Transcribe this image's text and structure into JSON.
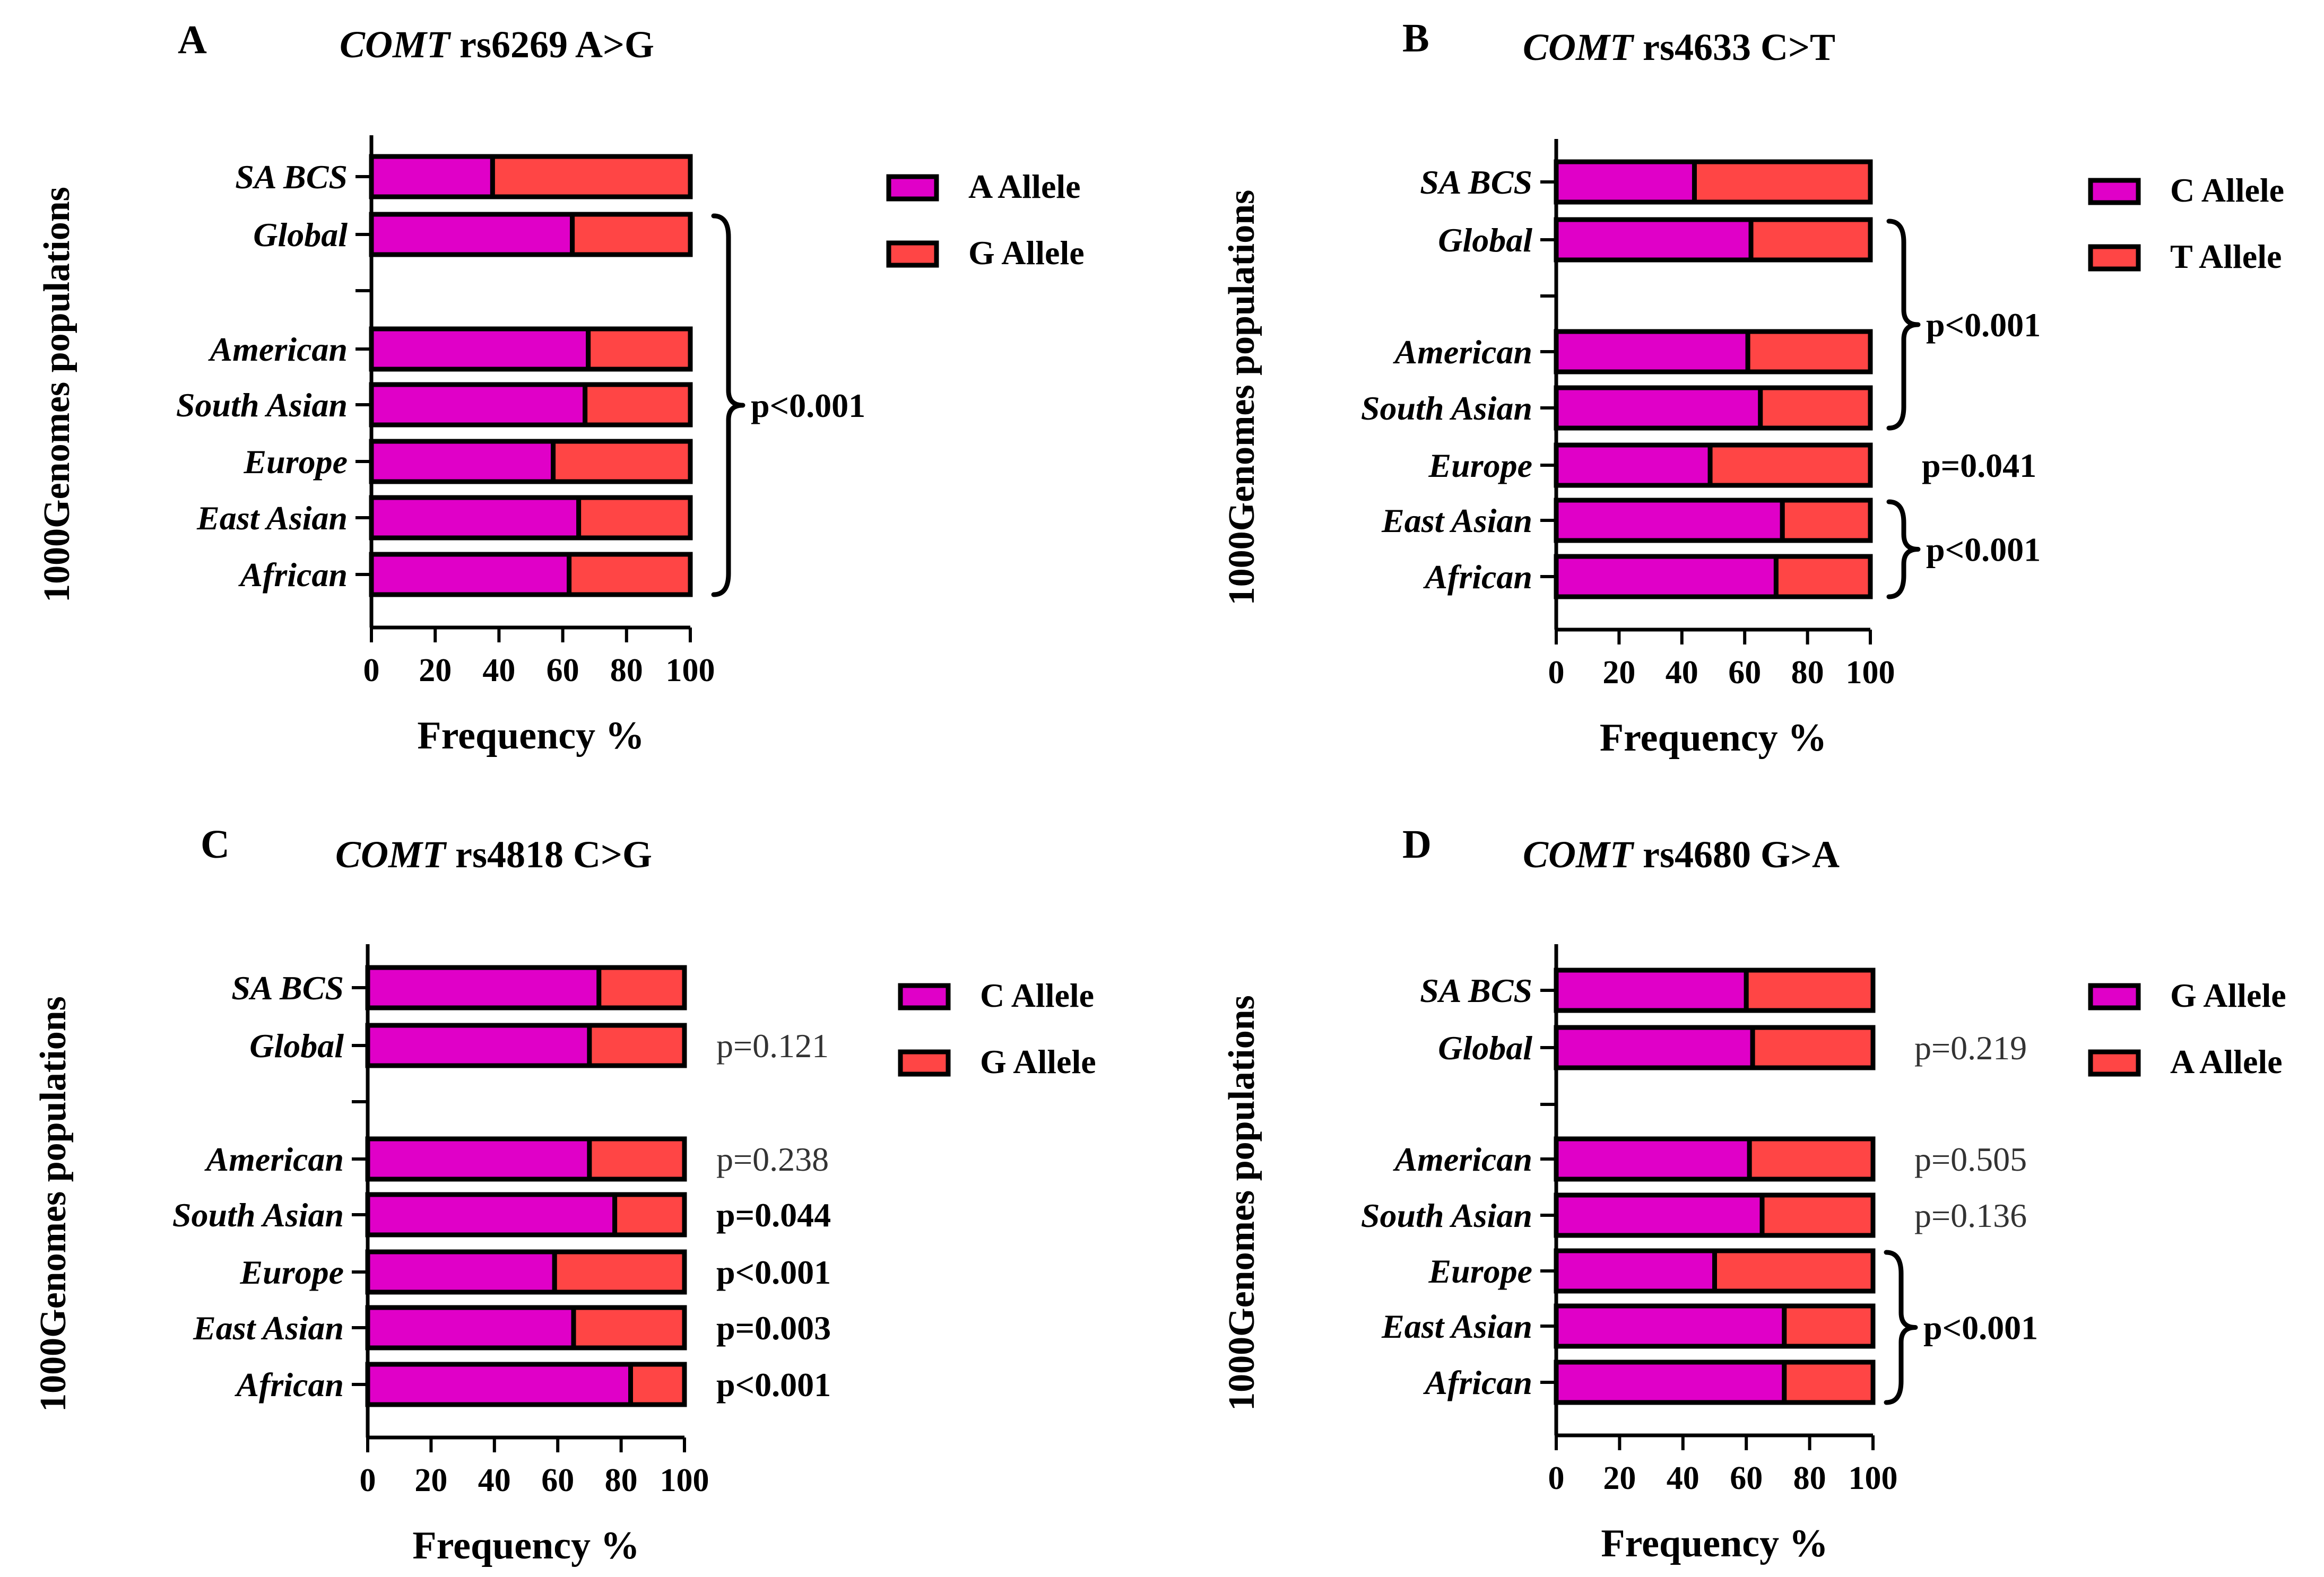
{
  "colors": {
    "allele1": "#E000C8",
    "allele2": "#FF4545",
    "outline": "#000000"
  },
  "chart_data": [
    {
      "type": "bar",
      "stacked": true,
      "orientation": "horizontal",
      "panel": "A",
      "title_gene": "COMT",
      "title_variant": "rs6269 A>G",
      "xlabel": "Frequency %",
      "ylabel": "1000Genomes populations",
      "xlim": [
        0,
        100
      ],
      "xticks": [
        "0",
        "20",
        "40",
        "60",
        "80",
        "100"
      ],
      "categories": [
        "SA BCS",
        "Global",
        "",
        "American",
        "South Asian",
        "Europe",
        "East Asian",
        "African"
      ],
      "series": [
        {
          "name": "A Allele",
          "values": [
            38,
            63,
            null,
            68,
            67,
            57,
            65,
            62
          ]
        },
        {
          "name": "G Allele",
          "values": [
            62,
            37,
            null,
            32,
            33,
            43,
            35,
            38
          ]
        }
      ],
      "annotations": [
        {
          "text": "p<0.001",
          "bold": true,
          "brace": true,
          "from": "Global",
          "to": "African"
        }
      ]
    },
    {
      "type": "bar",
      "stacked": true,
      "orientation": "horizontal",
      "panel": "B",
      "title_gene": "COMT",
      "title_variant": "rs4633 C>T",
      "xlabel": "Frequency %",
      "ylabel": "1000Genomes populations",
      "xlim": [
        0,
        100
      ],
      "xticks": [
        "0",
        "20",
        "40",
        "60",
        "80",
        "100"
      ],
      "categories": [
        "SA BCS",
        "Global",
        "",
        "American",
        "South Asian",
        "Europe",
        "East Asian",
        "African"
      ],
      "series": [
        {
          "name": "C Allele",
          "values": [
            44,
            62,
            null,
            61,
            65,
            49,
            72,
            70
          ]
        },
        {
          "name": "T Allele",
          "values": [
            56,
            38,
            null,
            39,
            35,
            51,
            28,
            30
          ]
        }
      ],
      "annotations": [
        {
          "text": "p<0.001",
          "bold": true,
          "brace": true,
          "from": "Global",
          "to": "South Asian"
        },
        {
          "text": "p=0.041",
          "bold": true,
          "brace": false,
          "from": "Europe",
          "to": "Europe"
        },
        {
          "text": "p<0.001",
          "bold": true,
          "brace": true,
          "from": "East Asian",
          "to": "African"
        }
      ]
    },
    {
      "type": "bar",
      "stacked": true,
      "orientation": "horizontal",
      "panel": "C",
      "title_gene": "COMT",
      "title_variant": "rs4818 C>G",
      "xlabel": "Frequency %",
      "ylabel": "1000Genomes populations",
      "xlim": [
        0,
        100
      ],
      "xticks": [
        "0",
        "20",
        "40",
        "60",
        "80",
        "100"
      ],
      "categories": [
        "SA BCS",
        "Global",
        "",
        "American",
        "South Asian",
        "Europe",
        "East Asian",
        "African"
      ],
      "series": [
        {
          "name": "C Allele",
          "values": [
            73,
            70,
            null,
            70,
            78,
            59,
            65,
            83
          ]
        },
        {
          "name": "G Allele",
          "values": [
            27,
            30,
            null,
            30,
            22,
            41,
            35,
            17
          ]
        }
      ],
      "annotations": [
        {
          "text": "p=0.121",
          "bold": false,
          "brace": false,
          "from": "Global",
          "to": "Global"
        },
        {
          "text": "p=0.238",
          "bold": false,
          "brace": false,
          "from": "American",
          "to": "American"
        },
        {
          "text": "p=0.044",
          "bold": true,
          "brace": false,
          "from": "South Asian",
          "to": "South Asian"
        },
        {
          "text": "p<0.001",
          "bold": true,
          "brace": false,
          "from": "Europe",
          "to": "Europe"
        },
        {
          "text": "p=0.003",
          "bold": true,
          "brace": false,
          "from": "East Asian",
          "to": "East Asian"
        },
        {
          "text": "p<0.001",
          "bold": true,
          "brace": false,
          "from": "African",
          "to": "African"
        }
      ]
    },
    {
      "type": "bar",
      "stacked": true,
      "orientation": "horizontal",
      "panel": "D",
      "title_gene": "COMT",
      "title_variant": "rs4680 G>A",
      "xlabel": "Frequency %",
      "ylabel": "1000Genomes populations",
      "xlim": [
        0,
        100
      ],
      "xticks": [
        "0",
        "20",
        "40",
        "60",
        "80",
        "100"
      ],
      "categories": [
        "SA BCS",
        "Global",
        "",
        "American",
        "South Asian",
        "Europe",
        "East Asian",
        "African"
      ],
      "series": [
        {
          "name": "G Allele",
          "values": [
            60,
            62,
            null,
            61,
            65,
            50,
            72,
            72
          ]
        },
        {
          "name": "A Allele",
          "values": [
            40,
            38,
            null,
            39,
            35,
            50,
            28,
            28
          ]
        }
      ],
      "annotations": [
        {
          "text": "p=0.219",
          "bold": false,
          "brace": false,
          "from": "Global",
          "to": "Global"
        },
        {
          "text": "p=0.505",
          "bold": false,
          "brace": false,
          "from": "American",
          "to": "American"
        },
        {
          "text": "p=0.136",
          "bold": false,
          "brace": false,
          "from": "South Asian",
          "to": "South Asian"
        },
        {
          "text": "p<0.001",
          "bold": true,
          "brace": true,
          "from": "Europe",
          "to": "African"
        }
      ]
    }
  ]
}
